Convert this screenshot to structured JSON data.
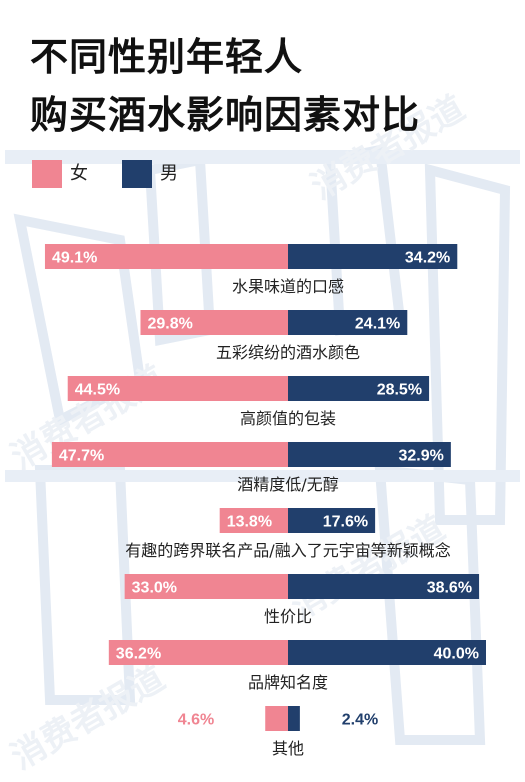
{
  "title_line1": "不同性别年轻人",
  "title_line2": "购买酒水影响因素对比",
  "watermark": "消费者报道",
  "colors": {
    "female": "#f08592",
    "male": "#213f6c",
    "label_text": "#222222",
    "bg_art": "#dde6f0"
  },
  "legend": [
    {
      "key": "female",
      "label": "女"
    },
    {
      "key": "male",
      "label": "男"
    }
  ],
  "chart_data": {
    "type": "bar",
    "orientation": "horizontal-diverging",
    "unit": "%",
    "series": [
      {
        "name": "女",
        "values": [
          49.1,
          29.8,
          44.5,
          47.7,
          13.8,
          33.0,
          36.2,
          4.6
        ]
      },
      {
        "name": "男",
        "values": [
          34.2,
          24.1,
          28.5,
          32.9,
          17.6,
          38.6,
          40.0,
          2.4
        ]
      }
    ],
    "categories": [
      "水果味道的口感",
      "五彩缤纷的酒水颜色",
      "高颜值的包装",
      "酒精度低/无醇",
      "有趣的跨界联名产品/融入了元宇宙等新颖概念",
      "性价比",
      "品牌知名度",
      "其他"
    ],
    "data_labels": {
      "female": [
        "49.1%",
        "29.8%",
        "44.5%",
        "47.7%",
        "13.8%",
        "33.0%",
        "36.2%",
        "4.6%"
      ],
      "male": [
        "34.2%",
        "24.1%",
        "28.5%",
        "32.9%",
        "17.6%",
        "38.6%",
        "40.0%",
        "2.4%"
      ]
    },
    "xlim": [
      0,
      50
    ],
    "grid": false,
    "legend_position": "top-left"
  }
}
